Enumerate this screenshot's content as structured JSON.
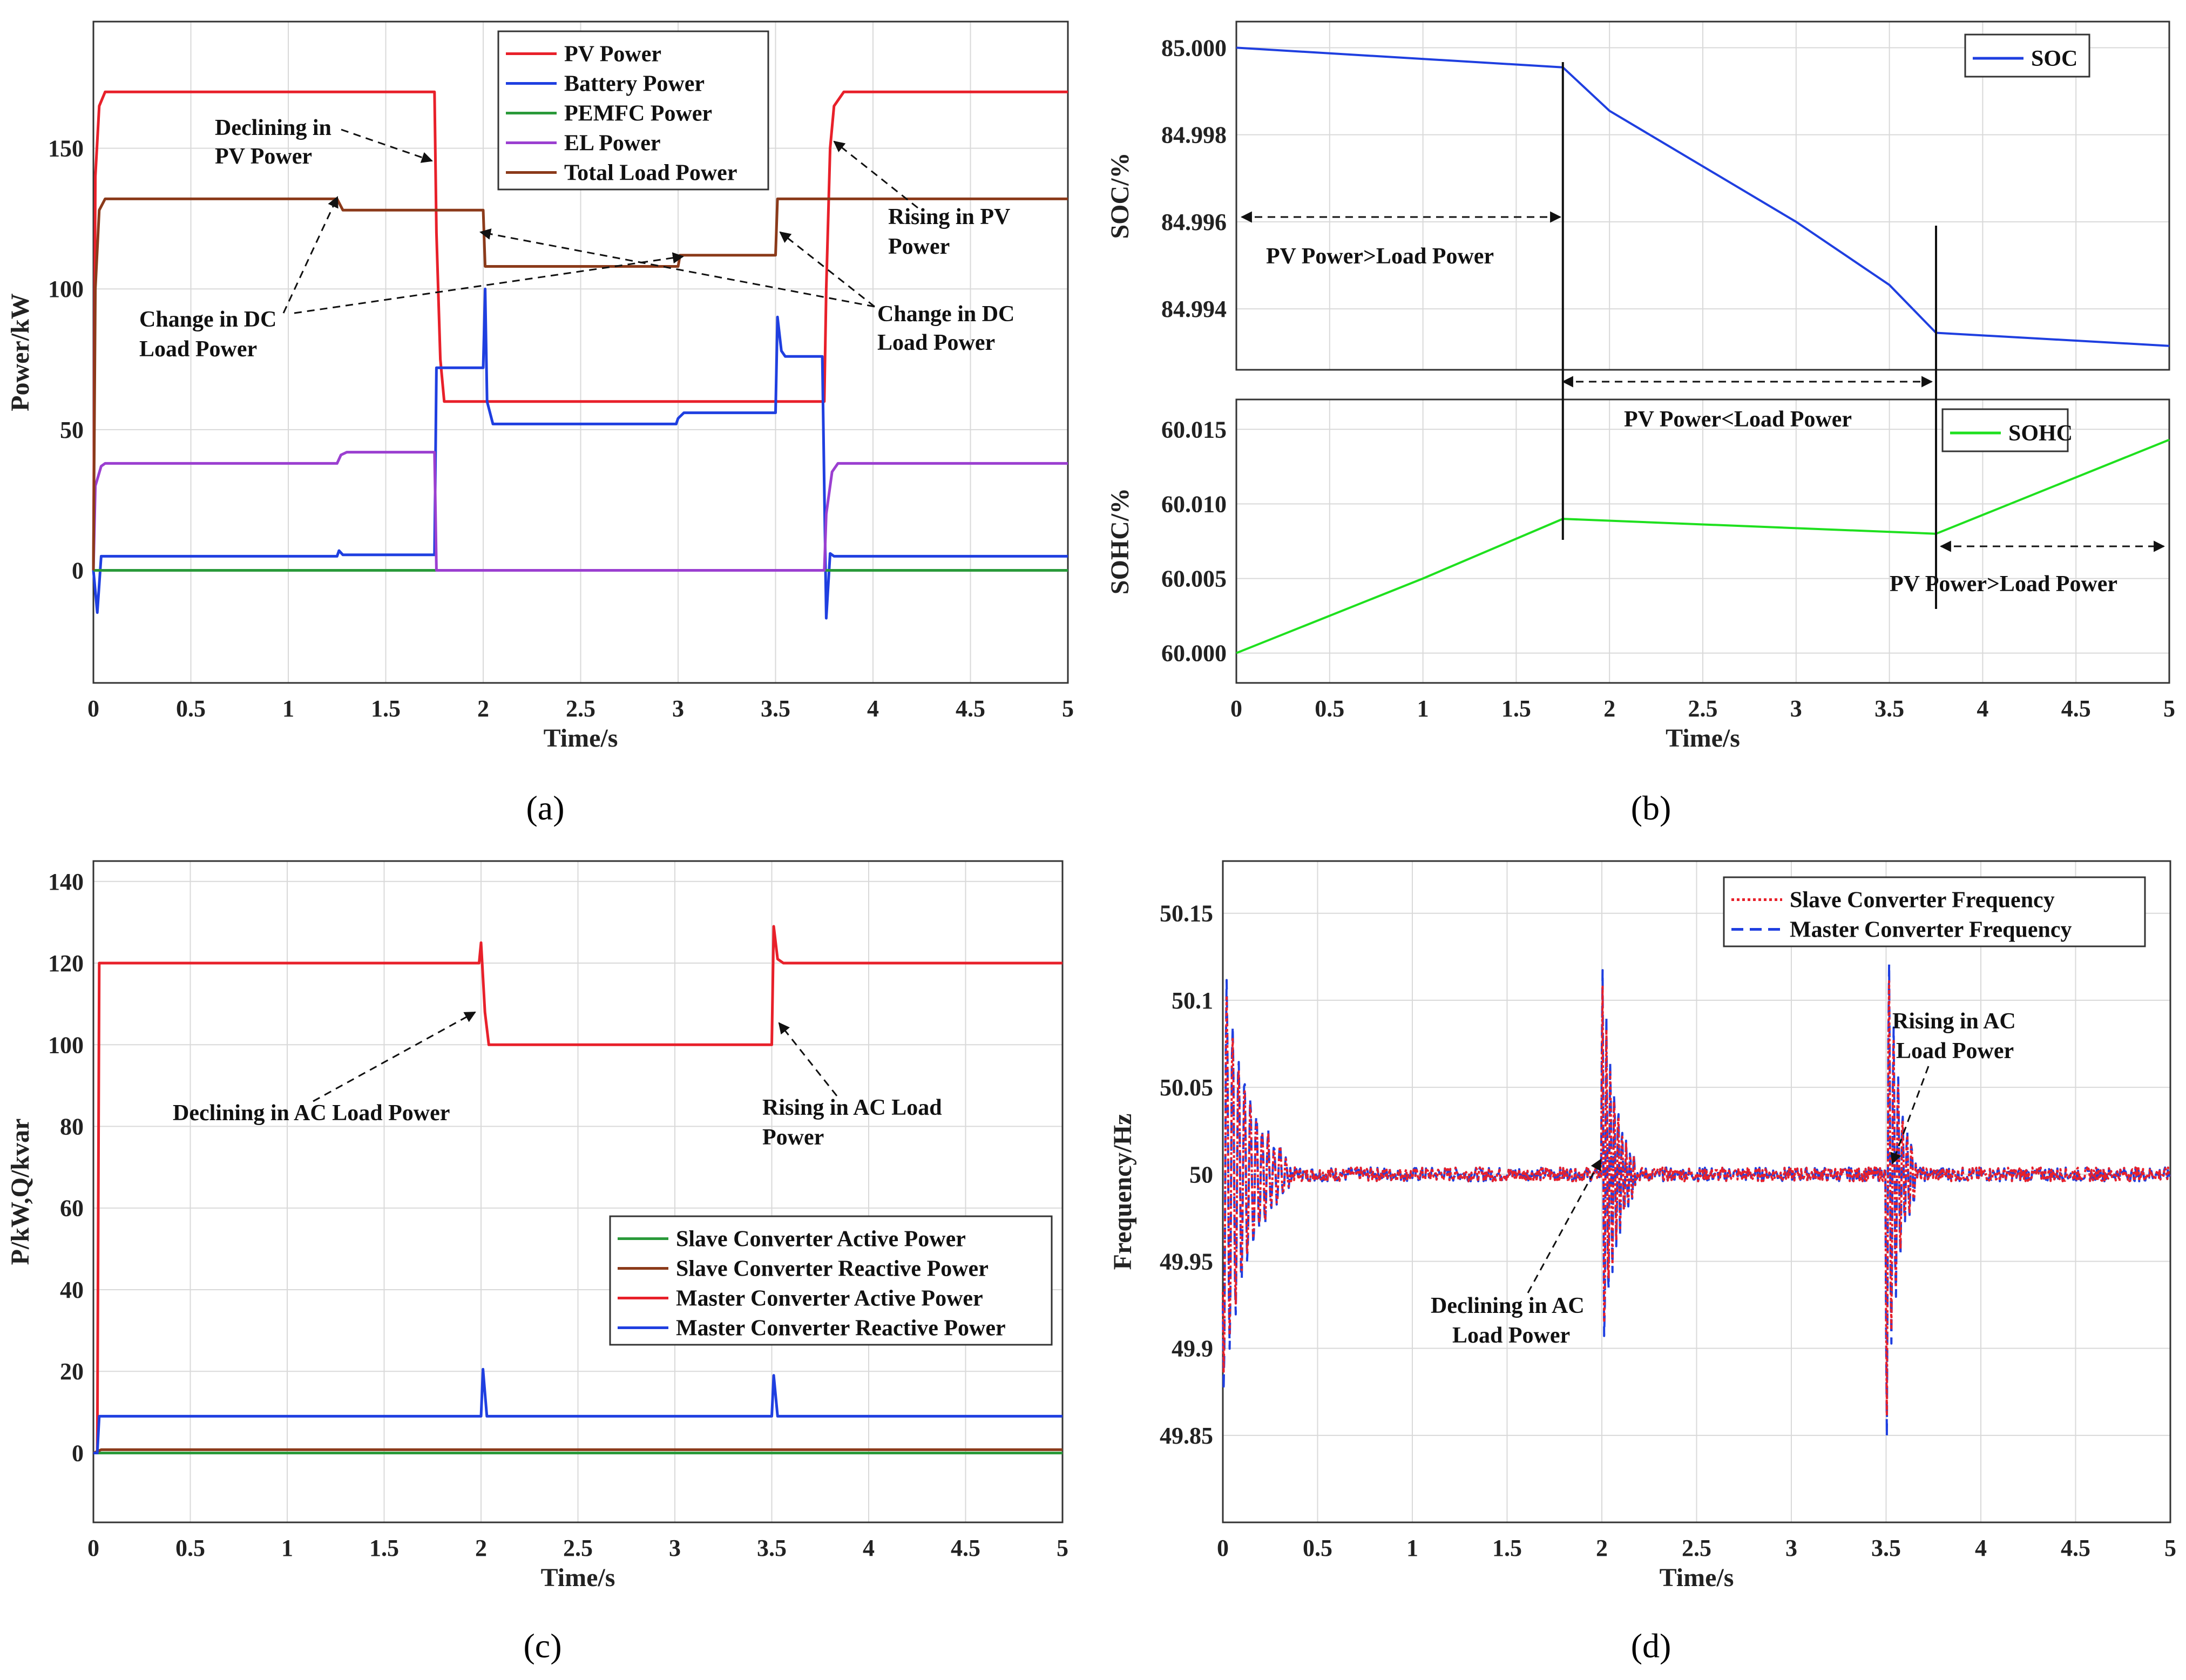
{
  "panels": [
    {
      "id": "a",
      "label": "(a)",
      "xlabel": "Time/s",
      "ylabel": "Power/kW",
      "xlim": [
        0,
        5
      ],
      "ylim": [
        -40,
        195
      ],
      "xticks": [
        0,
        0.5,
        1,
        1.5,
        2,
        2.5,
        3,
        3.5,
        4,
        4.5,
        5
      ],
      "yticks": [
        0,
        50,
        100,
        150
      ],
      "legend": "top-center",
      "series": [
        {
          "name": "PV Power",
          "color": "#e8202a",
          "points": [
            [
              0,
              0
            ],
            [
              0.01,
              140
            ],
            [
              0.03,
              165
            ],
            [
              0.06,
              170
            ],
            [
              1.75,
              170
            ],
            [
              1.76,
              120
            ],
            [
              1.78,
              75
            ],
            [
              1.8,
              60
            ],
            [
              3.75,
              60
            ],
            [
              3.76,
              100
            ],
            [
              3.78,
              150
            ],
            [
              3.8,
              165
            ],
            [
              3.85,
              170
            ],
            [
              5,
              170
            ]
          ]
        },
        {
          "name": "Battery Power",
          "color": "#1f3fe0",
          "points": [
            [
              0,
              0
            ],
            [
              0.02,
              -15
            ],
            [
              0.04,
              5
            ],
            [
              0.06,
              5
            ],
            [
              1.25,
              5
            ],
            [
              1.26,
              7
            ],
            [
              1.28,
              5.5
            ],
            [
              1.75,
              5.5
            ],
            [
              1.76,
              72
            ],
            [
              2,
              72
            ],
            [
              2.01,
              100
            ],
            [
              2.02,
              60
            ],
            [
              2.05,
              52
            ],
            [
              2.99,
              52
            ],
            [
              3,
              54
            ],
            [
              3.03,
              56
            ],
            [
              3.5,
              56
            ],
            [
              3.51,
              90
            ],
            [
              3.53,
              78
            ],
            [
              3.55,
              76
            ],
            [
              3.74,
              76
            ],
            [
              3.76,
              -17
            ],
            [
              3.78,
              6
            ],
            [
              3.8,
              5
            ],
            [
              5,
              5
            ]
          ]
        },
        {
          "name": "PEMFC Power",
          "color": "#2a9a3a",
          "points": [
            [
              0,
              0
            ],
            [
              5,
              0
            ]
          ]
        },
        {
          "name": "EL Power",
          "color": "#9b3fd0",
          "points": [
            [
              0,
              0
            ],
            [
              0.01,
              30
            ],
            [
              0.04,
              37
            ],
            [
              0.06,
              38
            ],
            [
              1.25,
              38
            ],
            [
              1.27,
              41
            ],
            [
              1.3,
              42
            ],
            [
              1.75,
              42
            ],
            [
              1.76,
              0
            ],
            [
              3.75,
              0
            ],
            [
              3.76,
              20
            ],
            [
              3.79,
              35
            ],
            [
              3.82,
              38
            ],
            [
              5,
              38
            ]
          ]
        },
        {
          "name": "Total Load Power",
          "color": "#8b3a1a",
          "points": [
            [
              0,
              0
            ],
            [
              0.01,
              100
            ],
            [
              0.03,
              128
            ],
            [
              0.06,
              132
            ],
            [
              1.25,
              132
            ],
            [
              1.28,
              128
            ],
            [
              2,
              128
            ],
            [
              2.01,
              108
            ],
            [
              3,
              108
            ],
            [
              3.01,
              112
            ],
            [
              3.5,
              112
            ],
            [
              3.51,
              132
            ],
            [
              5,
              132
            ]
          ]
        }
      ],
      "annotations": [
        {
          "lines": [
            "Declining in",
            "PV Power"
          ]
        },
        {
          "lines": [
            "Change in DC",
            "Load Power"
          ]
        },
        {
          "lines": [
            "Rising in PV",
            "Power"
          ]
        },
        {
          "lines": [
            "Change in DC",
            "Load Power"
          ]
        }
      ]
    },
    {
      "id": "b",
      "label": "(b)",
      "xlabel": "Time/s",
      "xlim": [
        0,
        5
      ],
      "xticks": [
        0,
        0.5,
        1,
        1.5,
        2,
        2.5,
        3,
        3.5,
        4,
        4.5,
        5
      ],
      "top": {
        "ylabel": "SOC/%",
        "ylim": [
          84.9926,
          85.0006
        ],
        "yticks": [
          84.994,
          84.996,
          84.998,
          85.0
        ],
        "ytick_labels": [
          "84.994",
          "84.996",
          "84.998",
          "85.000"
        ],
        "series": [
          {
            "name": "SOC",
            "color": "#1f3fe0",
            "points": [
              [
                0,
                85.0
              ],
              [
                1.75,
                84.99955
              ],
              [
                2,
                84.99855
              ],
              [
                3,
                84.996
              ],
              [
                3.5,
                84.99455
              ],
              [
                3.75,
                84.99345
              ],
              [
                5,
                84.99315
              ]
            ]
          }
        ]
      },
      "bottom": {
        "ylabel": "SOHC/%",
        "ylim": [
          59.998,
          60.017
        ],
        "yticks": [
          60.0,
          60.005,
          60.01,
          60.015
        ],
        "ytick_labels": [
          "60.000",
          "60.005",
          "60.010",
          "60.015"
        ],
        "series": [
          {
            "name": "SOHC",
            "color": "#1fe01f",
            "points": [
              [
                0,
                60.0
              ],
              [
                1,
                60.005
              ],
              [
                1.75,
                60.009
              ],
              [
                3.75,
                60.008
              ],
              [
                5,
                60.0143
              ]
            ]
          }
        ]
      },
      "annotations": [
        {
          "text": "PV Power>Load Power"
        },
        {
          "text": "PV Power<Load Power"
        },
        {
          "text": "PV Power>Load Power"
        }
      ]
    },
    {
      "id": "c",
      "label": "(c)",
      "xlabel": "Time/s",
      "ylabel": "P/kW,Q/kvar",
      "xlim": [
        0,
        5
      ],
      "ylim": [
        -17,
        145
      ],
      "xticks": [
        0,
        0.5,
        1,
        1.5,
        2,
        2.5,
        3,
        3.5,
        4,
        4.5,
        5
      ],
      "yticks": [
        0,
        20,
        40,
        60,
        80,
        100,
        120,
        140
      ],
      "legend": "lower-right",
      "series": [
        {
          "name": "Slave Converter Active Power",
          "color": "#2a9a3a",
          "points": [
            [
              0,
              0
            ],
            [
              5,
              0
            ]
          ]
        },
        {
          "name": "Slave Converter Reactive Power",
          "color": "#8b3a1a",
          "points": [
            [
              0,
              0
            ],
            [
              0.04,
              0.8
            ],
            [
              5,
              0.8
            ]
          ]
        },
        {
          "name": "Master Converter Active Power",
          "color": "#e8202a",
          "points": [
            [
              0,
              0
            ],
            [
              0.02,
              0
            ],
            [
              0.03,
              120
            ],
            [
              1.99,
              120
            ],
            [
              2,
              125
            ],
            [
              2.02,
              108
            ],
            [
              2.04,
              100
            ],
            [
              3.5,
              100
            ],
            [
              3.51,
              129
            ],
            [
              3.53,
              121
            ],
            [
              3.56,
              120
            ],
            [
              5,
              120
            ]
          ]
        },
        {
          "name": "Master Converter Reactive Power",
          "color": "#1f3fe0",
          "points": [
            [
              0,
              0
            ],
            [
              0.02,
              0
            ],
            [
              0.03,
              9
            ],
            [
              1.99,
              9
            ],
            [
              2.0,
              9
            ],
            [
              2.01,
              20.5
            ],
            [
              2.03,
              9
            ],
            [
              3.5,
              9
            ],
            [
              3.51,
              19
            ],
            [
              3.53,
              9
            ],
            [
              5,
              9
            ]
          ]
        }
      ],
      "annotations": [
        {
          "lines": [
            "Declining in AC Load Power"
          ]
        },
        {
          "lines": [
            "Rising in AC Load",
            "Power"
          ]
        }
      ]
    },
    {
      "id": "d",
      "label": "(d)",
      "xlabel": "Time/s",
      "ylabel": "Frequency/Hz",
      "xlim": [
        0,
        5
      ],
      "ylim": [
        49.8,
        50.18
      ],
      "xticks": [
        0,
        0.5,
        1,
        1.5,
        2,
        2.5,
        3,
        3.5,
        4,
        4.5,
        5
      ],
      "yticks": [
        49.85,
        49.9,
        49.95,
        50,
        50.05,
        50.1,
        50.15
      ],
      "ytick_labels": [
        "49.85",
        "49.9",
        "49.95",
        "50",
        "50.05",
        "50.1",
        "50.15"
      ],
      "legend": "top-right",
      "series": [
        {
          "name": "Slave Converter Frequency",
          "color": "#e8202a"
        },
        {
          "name": "Master Converter Frequency",
          "color": "#1f3fe0"
        }
      ],
      "annotations": [
        {
          "lines": [
            "Declining in AC",
            "Load Power"
          ]
        },
        {
          "lines": [
            "Rising in AC",
            "Load Power"
          ]
        }
      ]
    }
  ]
}
